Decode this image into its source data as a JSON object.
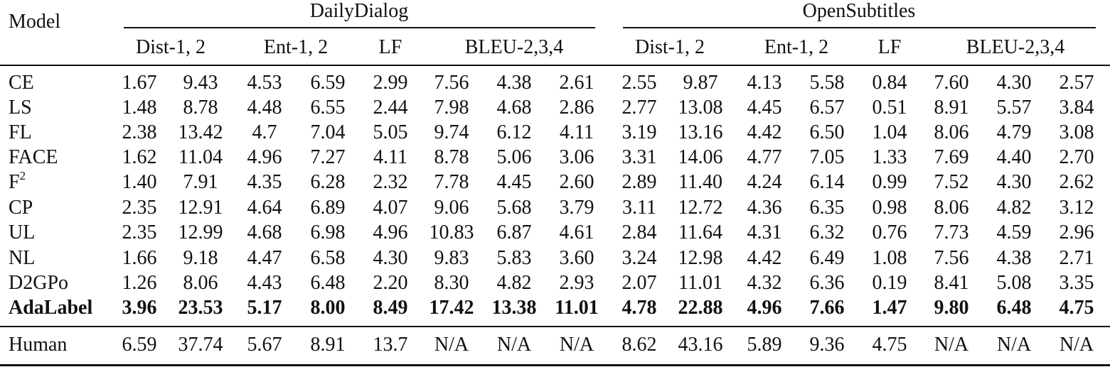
{
  "header": {
    "model": "Model",
    "groups": [
      "DailyDialog",
      "OpenSubtitles"
    ],
    "metrics": [
      "Dist-1, 2",
      "Ent-1, 2",
      "LF",
      "BLEU-2,3,4"
    ]
  },
  "rows": [
    {
      "name": "CE",
      "values": [
        "1.67",
        "9.43",
        "4.53",
        "6.59",
        "2.99",
        "7.56",
        "4.38",
        "2.61",
        "2.55",
        "9.87",
        "4.13",
        "5.58",
        "0.84",
        "7.60",
        "4.30",
        "2.57"
      ]
    },
    {
      "name": "LS",
      "values": [
        "1.48",
        "8.78",
        "4.48",
        "6.55",
        "2.44",
        "7.98",
        "4.68",
        "2.86",
        "2.77",
        "13.08",
        "4.45",
        "6.57",
        "0.51",
        "8.91",
        "5.57",
        "3.84"
      ]
    },
    {
      "name": "FL",
      "values": [
        "2.38",
        "13.42",
        "4.7",
        "7.04",
        "5.05",
        "9.74",
        "6.12",
        "4.11",
        "3.19",
        "13.16",
        "4.42",
        "6.50",
        "1.04",
        "8.06",
        "4.79",
        "3.08"
      ]
    },
    {
      "name": "FACE",
      "values": [
        "1.62",
        "11.04",
        "4.96",
        "7.27",
        "4.11",
        "8.78",
        "5.06",
        "3.06",
        "3.31",
        "14.06",
        "4.77",
        "7.05",
        "1.33",
        "7.69",
        "4.40",
        "2.70"
      ]
    },
    {
      "name": "F",
      "sup": "2",
      "values": [
        "1.40",
        "7.91",
        "4.35",
        "6.28",
        "2.32",
        "7.78",
        "4.45",
        "2.60",
        "2.89",
        "11.40",
        "4.24",
        "6.14",
        "0.99",
        "7.52",
        "4.30",
        "2.62"
      ]
    },
    {
      "name": "CP",
      "values": [
        "2.35",
        "12.91",
        "4.64",
        "6.89",
        "4.07",
        "9.06",
        "5.68",
        "3.79",
        "3.11",
        "12.72",
        "4.36",
        "6.35",
        "0.98",
        "8.06",
        "4.82",
        "3.12"
      ]
    },
    {
      "name": "UL",
      "values": [
        "2.35",
        "12.99",
        "4.68",
        "6.98",
        "4.96",
        "10.83",
        "6.87",
        "4.61",
        "2.84",
        "11.64",
        "4.31",
        "6.32",
        "0.76",
        "7.73",
        "4.59",
        "2.96"
      ]
    },
    {
      "name": "NL",
      "values": [
        "1.66",
        "9.18",
        "4.47",
        "6.58",
        "4.30",
        "9.83",
        "5.83",
        "3.60",
        "3.24",
        "12.98",
        "4.42",
        "6.49",
        "1.08",
        "7.56",
        "4.38",
        "2.71"
      ]
    },
    {
      "name": "D2GPo",
      "values": [
        "1.26",
        "8.06",
        "4.43",
        "6.48",
        "2.20",
        "8.30",
        "4.82",
        "2.93",
        "2.07",
        "11.01",
        "4.32",
        "6.36",
        "0.19",
        "8.41",
        "5.08",
        "3.35"
      ]
    },
    {
      "name": "AdaLabel",
      "bold": true,
      "values": [
        "3.96",
        "23.53",
        "5.17",
        "8.00",
        "8.49",
        "17.42",
        "13.38",
        "11.01",
        "4.78",
        "22.88",
        "4.96",
        "7.66",
        "1.47",
        "9.80",
        "6.48",
        "4.75"
      ]
    }
  ],
  "human": {
    "name": "Human",
    "values": [
      "6.59",
      "37.74",
      "5.67",
      "8.91",
      "13.7",
      "N/A",
      "N/A",
      "N/A",
      "8.62",
      "43.16",
      "5.89",
      "9.36",
      "4.75",
      "N/A",
      "N/A",
      "N/A"
    ]
  }
}
